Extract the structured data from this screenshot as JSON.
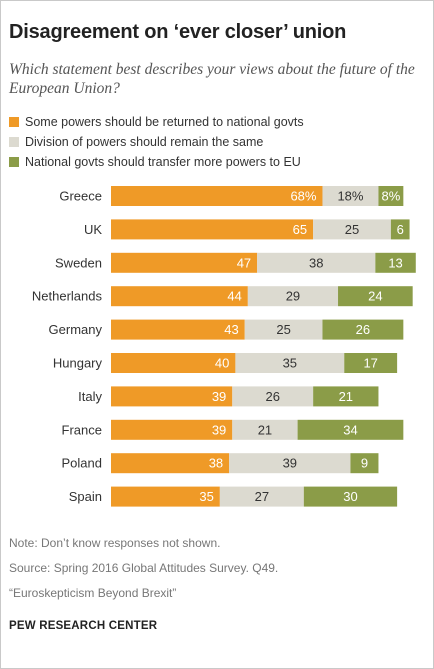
{
  "title": "Disagreement on ‘ever closer’ union",
  "subtitle": "Which statement best describes your views about the future of the European Union?",
  "notes": [
    "Note: Don’t know responses not shown.",
    "Source: Spring 2016 Global Attitudes Survey. Q49.",
    "“Euroskepticism Beyond Brexit”"
  ],
  "source_org": "PEW RESEARCH CENTER",
  "chart_data": {
    "type": "bar",
    "orientation": "horizontal",
    "stacked": true,
    "legend_placement": "top",
    "grid": false,
    "xlim": [
      0,
      100
    ],
    "categories": [
      "Greece",
      "UK",
      "Sweden",
      "Netherlands",
      "Germany",
      "Hungary",
      "Italy",
      "France",
      "Poland",
      "Spain"
    ],
    "series": [
      {
        "name": "Some powers should be returned to national govts",
        "color": "#ef9a27",
        "values": [
          68,
          65,
          47,
          44,
          43,
          40,
          39,
          39,
          38,
          35
        ]
      },
      {
        "name": "Division of powers should remain the same",
        "color": "#dcdad0",
        "values": [
          18,
          25,
          38,
          29,
          25,
          35,
          26,
          21,
          39,
          27
        ]
      },
      {
        "name": "National govts should transfer more powers to EU",
        "color": "#8b9c48",
        "values": [
          8,
          6,
          13,
          24,
          26,
          17,
          21,
          34,
          9,
          30
        ]
      }
    ],
    "data_labels": [
      [
        "68%",
        "18%",
        "8%"
      ],
      [
        "65",
        "25",
        "6"
      ],
      [
        "47",
        "38",
        "13"
      ],
      [
        "44",
        "29",
        "24"
      ],
      [
        "43",
        "25",
        "26"
      ],
      [
        "40",
        "35",
        "17"
      ],
      [
        "39",
        "26",
        "21"
      ],
      [
        "39",
        "21",
        "34"
      ],
      [
        "38",
        "39",
        "9"
      ],
      [
        "35",
        "27",
        "30"
      ]
    ]
  }
}
